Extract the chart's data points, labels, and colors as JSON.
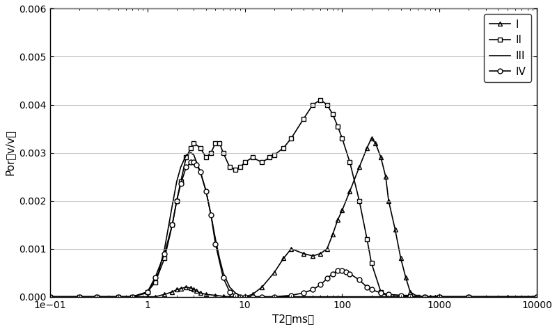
{
  "title": "",
  "xlabel": "T2（ms）",
  "ylabel": "Por（v/v）",
  "xlim": [
    0.1,
    10000
  ],
  "ylim": [
    0,
    0.006
  ],
  "yticks": [
    0,
    0.001,
    0.002,
    0.003,
    0.004,
    0.005,
    0.006
  ],
  "xticks": [
    0.1,
    1,
    10,
    100,
    1000,
    10000
  ],
  "background_color": "#ffffff",
  "curve_color": "#000000",
  "series": [
    {
      "label": "I",
      "marker": "^",
      "markersize": 5,
      "linestyle": "-",
      "x": [
        0.1,
        0.2,
        0.3,
        0.5,
        0.7,
        1.0,
        1.2,
        1.5,
        1.8,
        2.0,
        2.2,
        2.5,
        2.8,
        3.0,
        3.2,
        3.5,
        4.0,
        5.0,
        6.0,
        7.0,
        8.0,
        9.0,
        10.0,
        12.0,
        15.0,
        20.0,
        25.0,
        30.0,
        40.0,
        50.0,
        60.0,
        70.0,
        80.0,
        90.0,
        100.0,
        120.0,
        150.0,
        180.0,
        200.0,
        220.0,
        250.0,
        280.0,
        300.0,
        350.0,
        400.0,
        450.0,
        500.0,
        600.0,
        700.0,
        800.0,
        900.0,
        1000.0,
        2000.0,
        5000.0,
        10000.0
      ],
      "y": [
        0,
        0,
        0,
        0,
        0,
        0,
        0,
        5e-05,
        0.0001,
        0.00015,
        0.00017,
        0.0002,
        0.00018,
        0.00015,
        0.00012,
        8e-05,
        5e-05,
        3e-05,
        1e-05,
        0.0,
        0.0,
        0.0,
        0.0,
        5e-05,
        0.0002,
        0.0005,
        0.0008,
        0.001,
        0.0009,
        0.00085,
        0.0009,
        0.001,
        0.0013,
        0.0016,
        0.0018,
        0.0022,
        0.0027,
        0.0031,
        0.0033,
        0.0032,
        0.0029,
        0.0025,
        0.002,
        0.0014,
        0.0008,
        0.0004,
        0.0001,
        0.0,
        0.0,
        0.0,
        0.0,
        0.0,
        0.0,
        0.0,
        0.0
      ]
    },
    {
      "label": "II",
      "marker": "s",
      "markersize": 5,
      "linestyle": "-",
      "x": [
        0.1,
        0.2,
        0.3,
        0.5,
        0.7,
        1.0,
        1.2,
        1.5,
        1.8,
        2.0,
        2.2,
        2.5,
        2.8,
        3.0,
        3.5,
        4.0,
        4.5,
        5.0,
        5.5,
        6.0,
        7.0,
        8.0,
        9.0,
        10.0,
        12.0,
        15.0,
        18.0,
        20.0,
        25.0,
        30.0,
        40.0,
        50.0,
        60.0,
        70.0,
        80.0,
        90.0,
        100.0,
        120.0,
        150.0,
        180.0,
        200.0,
        250.0,
        300.0,
        350.0,
        400.0,
        450.0,
        500.0,
        600.0,
        700.0,
        1000.0,
        2000.0,
        10000.0
      ],
      "y": [
        0,
        0,
        0,
        0,
        0,
        0.0001,
        0.0003,
        0.0008,
        0.0015,
        0.002,
        0.0024,
        0.0029,
        0.0031,
        0.0032,
        0.0031,
        0.0029,
        0.003,
        0.0032,
        0.0032,
        0.003,
        0.0027,
        0.00265,
        0.0027,
        0.0028,
        0.0029,
        0.0028,
        0.0029,
        0.00295,
        0.0031,
        0.0033,
        0.0037,
        0.004,
        0.0041,
        0.004,
        0.0038,
        0.00355,
        0.0033,
        0.0028,
        0.002,
        0.0012,
        0.0007,
        0.0001,
        0.0,
        0.0,
        0.0,
        0.0,
        0.0,
        0.0,
        0.0,
        0.0,
        0.0,
        0.0
      ]
    },
    {
      "label": "III",
      "marker": "",
      "markersize": 0,
      "linestyle": "-",
      "x": [
        0.1,
        0.3,
        0.5,
        0.7,
        1.0,
        1.3,
        1.5,
        1.8,
        2.0,
        2.2,
        2.5,
        2.8,
        3.0,
        3.2,
        3.5,
        4.0,
        4.5,
        5.0,
        5.5,
        6.0,
        7.0,
        8.0,
        9.0,
        10.0,
        12.0,
        15.0,
        20.0,
        30.0,
        50.0,
        100.0,
        200.0,
        500.0,
        1000.0,
        10000.0
      ],
      "y": [
        0,
        0,
        0,
        0,
        8e-05,
        0.0005,
        0.001,
        0.0019,
        0.0024,
        0.0027,
        0.00295,
        0.003,
        0.00295,
        0.0028,
        0.0026,
        0.0022,
        0.0017,
        0.0012,
        0.0008,
        0.0005,
        0.0002,
        8e-05,
        2e-05,
        0.0,
        0.0,
        0.0,
        0.0,
        0.0,
        0.0,
        0.0,
        0.0,
        0.0,
        0.0,
        0.0
      ]
    },
    {
      "label": "IV",
      "marker": "o",
      "markersize": 5,
      "linestyle": "-",
      "x": [
        0.1,
        0.2,
        0.3,
        0.5,
        0.7,
        1.0,
        1.2,
        1.5,
        1.8,
        2.0,
        2.2,
        2.5,
        2.8,
        3.0,
        3.2,
        3.5,
        4.0,
        4.5,
        5.0,
        6.0,
        7.0,
        8.0,
        9.0,
        10.0,
        12.0,
        15.0,
        20.0,
        30.0,
        40.0,
        50.0,
        60.0,
        70.0,
        80.0,
        90.0,
        100.0,
        110.0,
        120.0,
        150.0,
        180.0,
        200.0,
        250.0,
        300.0,
        400.0,
        500.0,
        700.0,
        1000.0,
        2000.0,
        10000.0
      ],
      "y": [
        0,
        0,
        0,
        0,
        0,
        0.0001,
        0.0004,
        0.0009,
        0.0015,
        0.002,
        0.00235,
        0.0027,
        0.0028,
        0.0028,
        0.00275,
        0.0026,
        0.0022,
        0.0017,
        0.0011,
        0.0004,
        0.0001,
        3e-05,
        0.0,
        0.0,
        0.0,
        0.0,
        0.0,
        3e-05,
        8e-05,
        0.00015,
        0.00025,
        0.00038,
        0.00048,
        0.00055,
        0.00055,
        0.00052,
        0.00048,
        0.00035,
        0.0002,
        0.00015,
        8e-05,
        5e-05,
        3e-05,
        1e-05,
        0.0,
        0.0,
        0.0,
        0.0
      ]
    }
  ]
}
